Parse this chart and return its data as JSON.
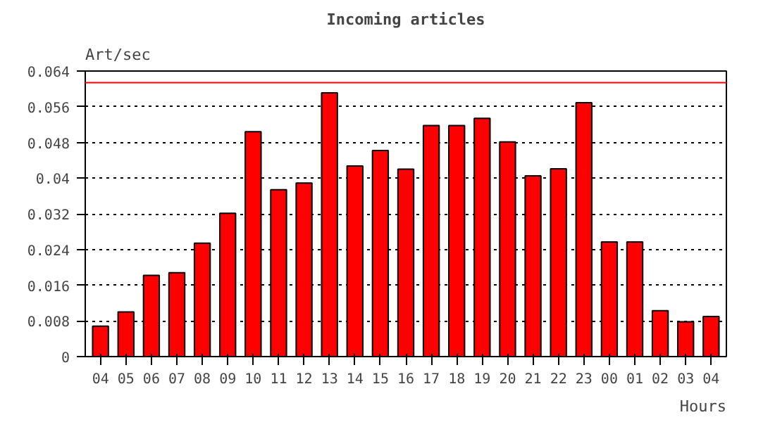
{
  "chart_data": {
    "type": "bar",
    "title": "Incoming articles",
    "ylabel": "Art/sec",
    "xlabel": "Hours",
    "categories": [
      "04",
      "05",
      "06",
      "07",
      "08",
      "09",
      "10",
      "11",
      "12",
      "13",
      "14",
      "15",
      "16",
      "17",
      "18",
      "19",
      "20",
      "21",
      "22",
      "23",
      "00",
      "01",
      "02",
      "03",
      "04"
    ],
    "values": [
      0.0068,
      0.01,
      0.0182,
      0.0188,
      0.0254,
      0.0321,
      0.0504,
      0.0374,
      0.0389,
      0.0591,
      0.0427,
      0.0462,
      0.042,
      0.0518,
      0.0518,
      0.0534,
      0.0481,
      0.0405,
      0.0421,
      0.0569,
      0.0257,
      0.0257,
      0.0103,
      0.0078,
      0.009
    ],
    "color": "#ff0000",
    "ylim": [
      0,
      0.064
    ],
    "yticks": [
      0,
      0.008,
      0.016,
      0.024,
      0.032,
      0.04,
      0.048,
      0.056,
      0.064
    ],
    "grid": "y",
    "ref_lines": [
      {
        "axis": "y",
        "value": 0.0614,
        "color": "#ff0000"
      }
    ]
  }
}
